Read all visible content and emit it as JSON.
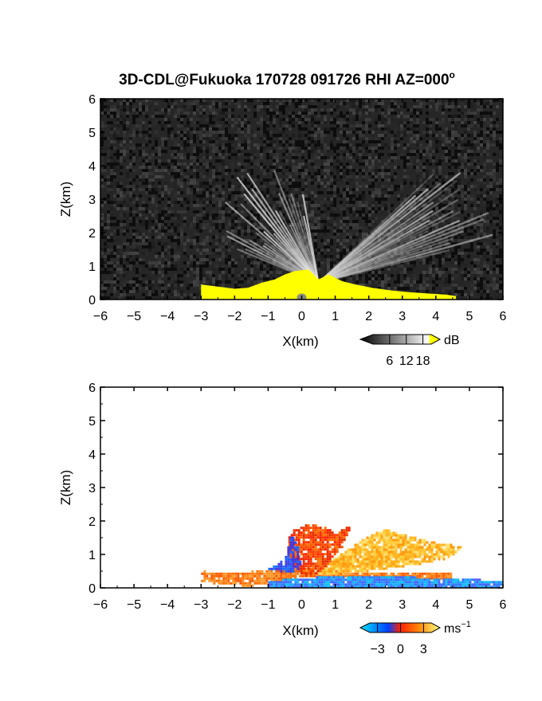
{
  "figure": {
    "title": "3D-CDL@Fukuoka 170728 091726 RHI AZ=000",
    "title_superscript": "o"
  },
  "chart_data": [
    {
      "type": "heatmap",
      "panel": "intensity",
      "xlabel": "X(km)",
      "ylabel": "Z(km)",
      "xlim": [
        -6,
        6
      ],
      "ylim": [
        0,
        6
      ],
      "x_ticks": [
        "-6",
        "-5",
        "-4",
        "-3",
        "-2",
        "-1",
        "0",
        "1",
        "2",
        "3",
        "4",
        "5",
        "6"
      ],
      "y_ticks": [
        "0",
        "1",
        "2",
        "3",
        "4",
        "5",
        "6"
      ],
      "colorbar": {
        "unit": "dB",
        "tick_labels": [
          "6",
          "12",
          "18"
        ],
        "tick_values": [
          6,
          12,
          18
        ],
        "range": [
          0,
          21
        ],
        "colors": [
          "#000000",
          "#ffffff",
          "#ffff00"
        ]
      },
      "background_color": "#262626",
      "features": [
        {
          "kind": "saturated-near-ground",
          "x_range": [
            -3.0,
            4.6
          ],
          "z_top": 0.9,
          "color": "#ffff00"
        },
        {
          "kind": "bright-cone",
          "x_range": [
            -0.6,
            1.5
          ],
          "z_top": 2.1
        },
        {
          "kind": "bright-slant",
          "x_range": [
            1.0,
            4.6
          ],
          "z_top": 1.4
        }
      ]
    },
    {
      "type": "heatmap",
      "panel": "velocity",
      "xlabel": "X(km)",
      "ylabel": "Z(km)",
      "xlim": [
        -6,
        6
      ],
      "ylim": [
        0,
        6
      ],
      "x_ticks": [
        "-6",
        "-5",
        "-4",
        "-3",
        "-2",
        "-1",
        "0",
        "1",
        "2",
        "3",
        "4",
        "5",
        "6"
      ],
      "y_ticks": [
        "0",
        "1",
        "2",
        "3",
        "4",
        "5",
        "6"
      ],
      "colorbar": {
        "unit": "ms",
        "unit_superscript": "−1",
        "tick_labels": [
          "−3",
          "0",
          "3"
        ],
        "tick_values": [
          -3,
          0,
          3
        ],
        "range": [
          -4,
          4
        ],
        "colors": [
          "#00e5ff",
          "#0040ff",
          "#ff2000",
          "#ff8000",
          "#ffff80"
        ]
      },
      "background_color": "#ffffff",
      "features": [
        {
          "kind": "positive-low-layer",
          "x_range": [
            -3.0,
            4.5
          ],
          "z_top": 0.5,
          "color": "#ff7a10"
        },
        {
          "kind": "negative-near-ground",
          "x_range": [
            -1.0,
            6.0
          ],
          "z_top": 0.25,
          "color": "#2a8cff"
        },
        {
          "kind": "negative-blob",
          "x_range": [
            -1.0,
            0.0
          ],
          "z_top": 1.6,
          "color": "#2a50ff"
        },
        {
          "kind": "positive-cone",
          "x_range": [
            -0.4,
            1.5
          ],
          "z_top": 1.9,
          "color": "#ff3a00"
        },
        {
          "kind": "positive-slant",
          "x_range": [
            0.8,
            4.8
          ],
          "z_top": 1.8,
          "color": "#ffb020"
        }
      ]
    }
  ]
}
